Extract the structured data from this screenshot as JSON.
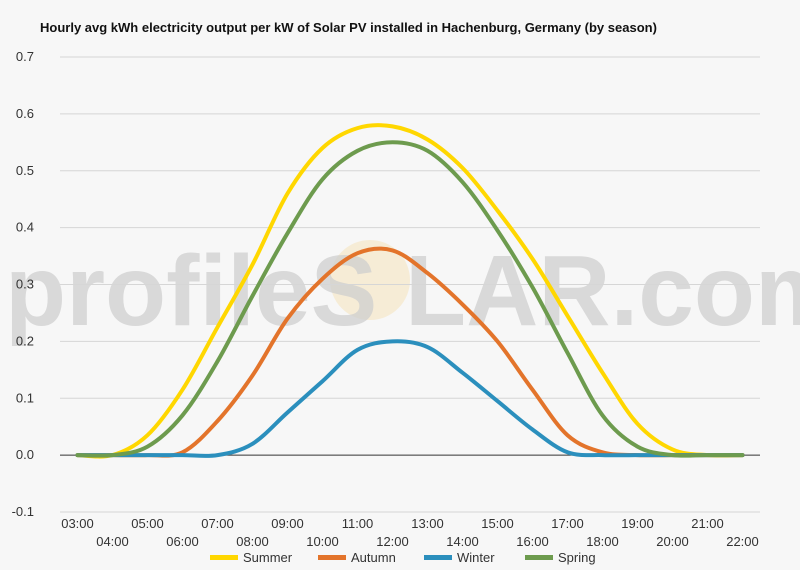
{
  "watermark": {
    "left": "profileS",
    "right": "LAR.com"
  },
  "chart_data": {
    "type": "line",
    "title": "Hourly avg kWh electricity output per kW of Solar PV installed in Hachenburg, Germany (by season)",
    "xlabel": "",
    "ylabel": "",
    "ylim": [
      -0.1,
      0.7
    ],
    "yticks": [
      -0.1,
      0.0,
      0.1,
      0.2,
      0.3,
      0.4,
      0.5,
      0.6,
      0.7
    ],
    "ytick_labels": [
      "-0.1",
      "0.0",
      "0.1",
      "0.2",
      "0.3",
      "0.4",
      "0.5",
      "0.6",
      "0.7"
    ],
    "x": [
      "03:00",
      "04:00",
      "05:00",
      "06:00",
      "07:00",
      "08:00",
      "09:00",
      "10:00",
      "11:00",
      "12:00",
      "13:00",
      "14:00",
      "15:00",
      "16:00",
      "17:00",
      "18:00",
      "19:00",
      "20:00",
      "21:00",
      "22:00"
    ],
    "grid": true,
    "legend_position": "bottom",
    "series": [
      {
        "name": "Summer",
        "color": "#ffd700",
        "values": [
          0.0,
          0.0,
          0.035,
          0.115,
          0.225,
          0.335,
          0.46,
          0.54,
          0.575,
          0.578,
          0.555,
          0.505,
          0.43,
          0.345,
          0.245,
          0.145,
          0.055,
          0.01,
          0.0,
          0.0
        ]
      },
      {
        "name": "Autumn",
        "color": "#e3742b",
        "values": [
          0.0,
          0.0,
          0.0,
          0.005,
          0.06,
          0.14,
          0.24,
          0.31,
          0.355,
          0.36,
          0.32,
          0.265,
          0.2,
          0.115,
          0.035,
          0.005,
          0.0,
          0.0,
          0.0,
          0.0
        ]
      },
      {
        "name": "Winter",
        "color": "#2b8fbd",
        "values": [
          0.0,
          0.0,
          0.0,
          0.0,
          0.0,
          0.02,
          0.075,
          0.13,
          0.185,
          0.2,
          0.19,
          0.145,
          0.095,
          0.045,
          0.005,
          0.0,
          0.0,
          0.0,
          0.0,
          0.0
        ]
      },
      {
        "name": "Spring",
        "color": "#6d9b4e",
        "values": [
          0.0,
          0.0,
          0.015,
          0.07,
          0.165,
          0.28,
          0.39,
          0.485,
          0.535,
          0.55,
          0.535,
          0.48,
          0.395,
          0.295,
          0.18,
          0.07,
          0.015,
          0.0,
          0.0,
          0.0
        ]
      }
    ]
  }
}
